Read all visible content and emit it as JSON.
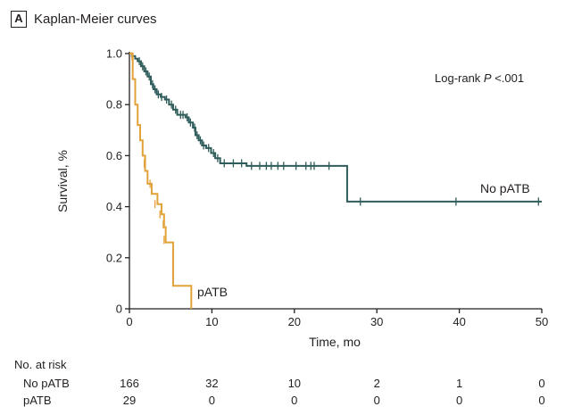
{
  "panel": {
    "letter": "A",
    "title": "Kaplan-Meier curves"
  },
  "annotation": {
    "prefix": "Log-rank ",
    "italic": "P",
    "suffix": " <.001"
  },
  "chart_data": {
    "type": "line",
    "subtype": "kaplan-meier",
    "title": "Kaplan-Meier curves",
    "xlabel": "Time, mo",
    "ylabel": "Survival, %",
    "xlim": [
      0,
      50
    ],
    "ylim": [
      0,
      1.0
    ],
    "xticks": [
      0,
      10,
      20,
      30,
      40,
      50
    ],
    "yticks": [
      0,
      0.2,
      0.4,
      0.6,
      0.8,
      1.0
    ],
    "xtick_labels": [
      "0",
      "10",
      "20",
      "30",
      "40",
      "50"
    ],
    "ytick_labels": [
      "0",
      "0.2",
      "0.4",
      "0.6",
      "0.8",
      "1.0"
    ],
    "grid": false,
    "series": [
      {
        "name": "No pATB",
        "label": "No pATB",
        "color": "#2e5c5a",
        "steps": [
          [
            0,
            1.0
          ],
          [
            0.3,
            0.99
          ],
          [
            0.7,
            0.98
          ],
          [
            1.0,
            0.97
          ],
          [
            1.4,
            0.95
          ],
          [
            1.8,
            0.93
          ],
          [
            2.2,
            0.91
          ],
          [
            2.6,
            0.88
          ],
          [
            2.9,
            0.86
          ],
          [
            3.3,
            0.84
          ],
          [
            3.8,
            0.83
          ],
          [
            4.3,
            0.82
          ],
          [
            4.8,
            0.8
          ],
          [
            5.3,
            0.78
          ],
          [
            5.8,
            0.76
          ],
          [
            6.8,
            0.75
          ],
          [
            7.2,
            0.73
          ],
          [
            7.7,
            0.71
          ],
          [
            8.0,
            0.68
          ],
          [
            8.4,
            0.66
          ],
          [
            8.8,
            0.64
          ],
          [
            9.3,
            0.63
          ],
          [
            9.9,
            0.61
          ],
          [
            10.4,
            0.59
          ],
          [
            11.0,
            0.57
          ],
          [
            14.2,
            0.56
          ],
          [
            26.4,
            0.42
          ],
          [
            50,
            0.42
          ]
        ],
        "censored": [
          [
            1.2,
            0.97
          ],
          [
            1.6,
            0.95
          ],
          [
            2.0,
            0.93
          ],
          [
            2.4,
            0.91
          ],
          [
            2.8,
            0.88
          ],
          [
            3.1,
            0.86
          ],
          [
            3.5,
            0.84
          ],
          [
            3.9,
            0.83
          ],
          [
            4.5,
            0.82
          ],
          [
            5.1,
            0.8
          ],
          [
            5.6,
            0.78
          ],
          [
            6.2,
            0.76
          ],
          [
            6.5,
            0.76
          ],
          [
            7.0,
            0.75
          ],
          [
            7.4,
            0.73
          ],
          [
            7.9,
            0.71
          ],
          [
            8.2,
            0.68
          ],
          [
            8.6,
            0.66
          ],
          [
            9.0,
            0.64
          ],
          [
            9.6,
            0.63
          ],
          [
            10.2,
            0.61
          ],
          [
            10.7,
            0.59
          ],
          [
            11.5,
            0.57
          ],
          [
            12.6,
            0.57
          ],
          [
            13.6,
            0.57
          ],
          [
            14.8,
            0.56
          ],
          [
            15.8,
            0.56
          ],
          [
            16.6,
            0.56
          ],
          [
            17.2,
            0.56
          ],
          [
            18.0,
            0.56
          ],
          [
            18.7,
            0.56
          ],
          [
            20.2,
            0.56
          ],
          [
            21.4,
            0.56
          ],
          [
            22.0,
            0.56
          ],
          [
            22.4,
            0.56
          ],
          [
            24.2,
            0.56
          ],
          [
            28.0,
            0.42
          ],
          [
            39.6,
            0.42
          ],
          [
            49.6,
            0.42
          ]
        ]
      },
      {
        "name": "pATB",
        "label": "pATB",
        "color": "#e2a23a",
        "steps": [
          [
            0,
            1.0
          ],
          [
            0.4,
            0.9
          ],
          [
            0.7,
            0.8
          ],
          [
            1.0,
            0.72
          ],
          [
            1.3,
            0.66
          ],
          [
            1.6,
            0.6
          ],
          [
            1.9,
            0.54
          ],
          [
            2.2,
            0.49
          ],
          [
            2.7,
            0.45
          ],
          [
            3.4,
            0.41
          ],
          [
            3.9,
            0.37
          ],
          [
            4.2,
            0.32
          ],
          [
            4.4,
            0.26
          ],
          [
            5.3,
            0.09
          ],
          [
            7.5,
            0.0
          ]
        ],
        "censored": [
          [
            0.3,
            0.99
          ],
          [
            1.8,
            0.57
          ],
          [
            2.5,
            0.49
          ],
          [
            3.1,
            0.41
          ],
          [
            3.7,
            0.37
          ],
          [
            4.1,
            0.33
          ],
          [
            4.2,
            0.27
          ]
        ]
      }
    ],
    "risk_table": {
      "title": "No. at risk",
      "times": [
        0,
        10,
        20,
        30,
        40,
        50
      ],
      "rows": [
        {
          "name": "No pATB",
          "values": [
            "166",
            "32",
            "10",
            "2",
            "1",
            "0"
          ]
        },
        {
          "name": "pATB",
          "values": [
            "29",
            "0",
            "0",
            "0",
            "0",
            "0"
          ]
        }
      ]
    }
  }
}
